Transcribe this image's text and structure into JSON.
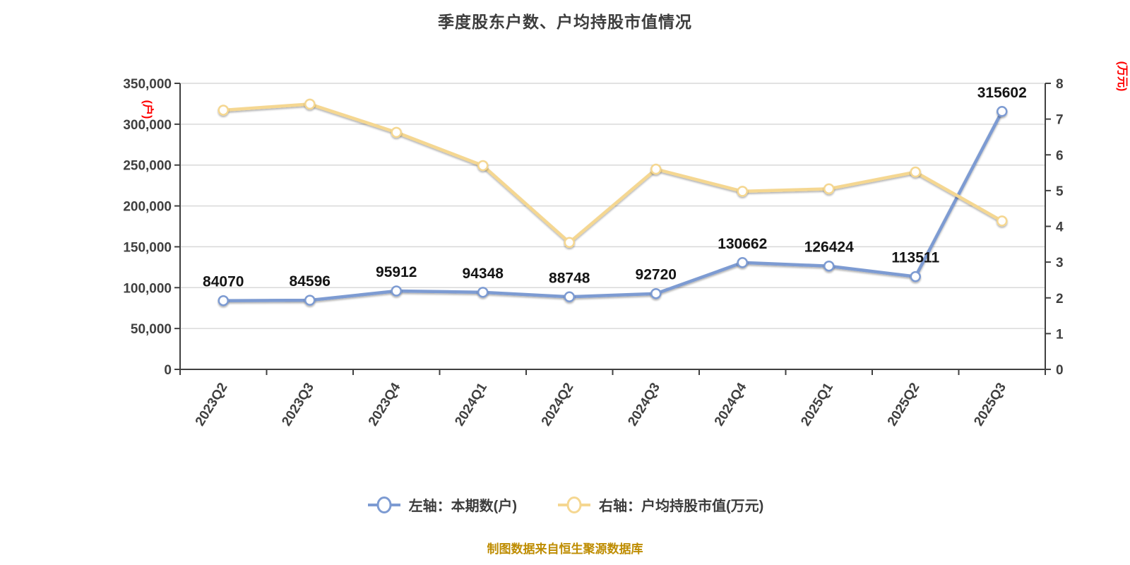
{
  "title": "季度股东户数、户均持股市值情况",
  "footer": "制图数据来自恒生聚源数据库",
  "left_axis_unit": "(户)",
  "right_axis_unit": "(万元)",
  "legend": [
    {
      "label": "左轴：本期数(户)",
      "color": "#7d9bd2"
    },
    {
      "label": "右轴：户均持股市值(万元)",
      "color": "#f5d791"
    }
  ],
  "colors": {
    "series_blue": "#7d9bd2",
    "series_yellow": "#f5d791",
    "axis": "#404040",
    "grid": "#d9d9d9",
    "point_fill": "#ffffff",
    "unit_label": "#fe0000",
    "footer": "#be8c00",
    "title_text": "#3d3d3d"
  },
  "chart_data": {
    "type": "line",
    "title": "季度股东户数、户均持股市值情况",
    "categories": [
      "2023Q2",
      "2023Q3",
      "2023Q4",
      "2024Q1",
      "2024Q2",
      "2024Q3",
      "2024Q4",
      "2025Q1",
      "2025Q2",
      "2025Q3"
    ],
    "series": [
      {
        "id": "shareholder-count",
        "name": "左轴：本期数(户)",
        "axis": "left",
        "color": "#7d9bd2",
        "values": [
          84070,
          84596,
          95912,
          94348,
          88748,
          92720,
          130662,
          126424,
          113511,
          315602
        ],
        "show_point_labels": true
      },
      {
        "id": "avg-holding-value",
        "name": "右轴：户均持股市值(万元)",
        "axis": "right",
        "color": "#f5d791",
        "values": [
          7.25,
          7.42,
          6.63,
          5.7,
          3.55,
          5.6,
          4.98,
          5.05,
          5.52,
          4.15
        ],
        "show_point_labels": false
      }
    ],
    "left_axis": {
      "min": 0,
      "max": 350000,
      "step": 50000,
      "unit": "(户)",
      "tick_labels": [
        "0",
        "50,000",
        "100,000",
        "150,000",
        "200,000",
        "250,000",
        "300,000",
        "350,000"
      ]
    },
    "right_axis": {
      "min": 0,
      "max": 8,
      "step": 1,
      "unit": "(万元)",
      "tick_labels": [
        "0",
        "1",
        "2",
        "3",
        "4",
        "5",
        "6",
        "7",
        "8"
      ]
    },
    "grid": "horizontal",
    "legend_position": "bottom",
    "x_label_rotation_deg": -58
  }
}
